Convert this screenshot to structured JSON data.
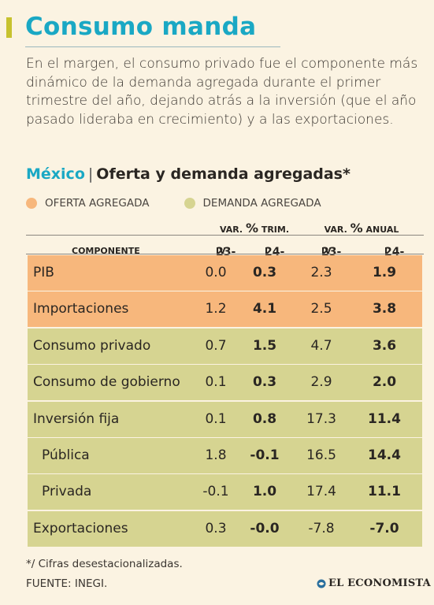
{
  "title": "Consumo manda",
  "intro": "En el margen, el consumo privado fue el componente más dinámico de la demanda agregada durante el primer trimestre del año, dejando atrás a la inversión (que el año pasado lideraba en crecimiento) y a las exportaciones.",
  "subtitle": {
    "country": "México",
    "separator": "|",
    "text": "Oferta y demanda agregadas*"
  },
  "legend": {
    "oferta": {
      "label": "OFERTA AGREGADA",
      "color": "#f7b77c"
    },
    "demanda": {
      "label": "DEMANDA AGREGADA",
      "color": "#d6d491"
    }
  },
  "chart_data": {
    "type": "table",
    "column_groups": [
      {
        "prefix": "VAR.",
        "pct": "%",
        "suffix": "TRIM."
      },
      {
        "prefix": "VAR.",
        "pct": "%",
        "suffix": "ANUAL"
      }
    ],
    "columns": [
      {
        "big": "COMPONENTE",
        "small": ""
      },
      {
        "big": "23-",
        "small": "IV"
      },
      {
        "big": "24-",
        "small": "I"
      },
      {
        "big": "23-",
        "small": "IV"
      },
      {
        "big": "24-",
        "small": "I"
      }
    ],
    "rows": [
      {
        "group": "oferta",
        "label": "PIB",
        "values": [
          "0.0",
          "0.3",
          "2.3",
          "1.9"
        ]
      },
      {
        "group": "oferta",
        "label": "Importaciones",
        "values": [
          "1.2",
          "4.1",
          "2.5",
          "3.8"
        ]
      },
      {
        "group": "demanda",
        "label": "Consumo privado",
        "values": [
          "0.7",
          "1.5",
          "4.7",
          "3.6"
        ]
      },
      {
        "group": "demanda",
        "label": "Consumo de gobierno",
        "values": [
          "0.1",
          "0.3",
          "2.9",
          "2.0"
        ]
      },
      {
        "group": "demanda",
        "label": "Inversión fija",
        "values": [
          "0.1",
          "0.8",
          "17.3",
          "11.4"
        ]
      },
      {
        "group": "demanda",
        "label": "Pública",
        "indent": true,
        "values": [
          "1.8",
          "-0.1",
          "16.5",
          "14.4"
        ]
      },
      {
        "group": "demanda",
        "label": "Privada",
        "indent": true,
        "values": [
          "-0.1",
          "1.0",
          "17.4",
          "11.1"
        ]
      },
      {
        "group": "demanda",
        "label": "Exportaciones",
        "values": [
          "0.3",
          "-0.0",
          "-7.8",
          "-7.0"
        ]
      }
    ]
  },
  "footnote": "*/ Cifras desestacionalizadas.",
  "source": "FUENTE: INEGI.",
  "brand": "EL ECONOMISTA",
  "brand_icon": "el-economista-logo-icon"
}
